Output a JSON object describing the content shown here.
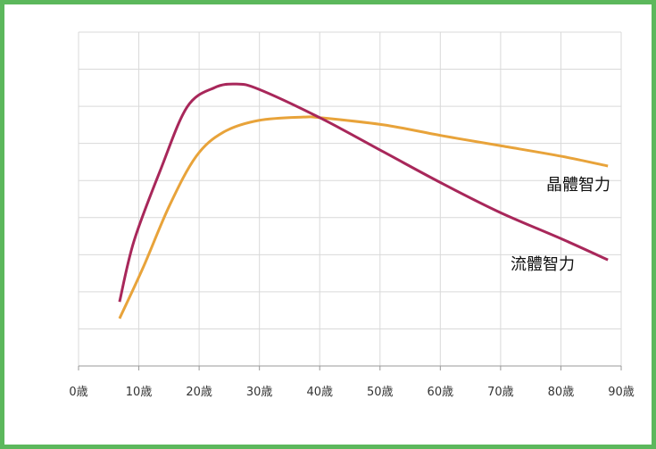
{
  "chart_data": {
    "type": "line",
    "xlim": [
      0,
      90
    ],
    "xticks": [
      {
        "value": 0,
        "label": "0歳"
      },
      {
        "value": 10,
        "label": "10歳"
      },
      {
        "value": 20,
        "label": "20歳"
      },
      {
        "value": 30,
        "label": "30歳"
      },
      {
        "value": 40,
        "label": "40歳"
      },
      {
        "value": 50,
        "label": "50歳"
      },
      {
        "value": 60,
        "label": "60歳"
      },
      {
        "value": 70,
        "label": "70歳"
      },
      {
        "value": 80,
        "label": "80歳"
      },
      {
        "value": 90,
        "label": "90歳"
      }
    ],
    "ylim": [
      0,
      9
    ],
    "yticks": [
      0,
      1,
      2,
      3,
      4,
      5,
      6,
      7,
      8,
      9
    ],
    "grid": true,
    "series": [
      {
        "name": "晶體智力",
        "color": "#e8a33a",
        "x": [
          6.8,
          10.7,
          15.1,
          19.5,
          24.0,
          29.9,
          37.3,
          40.3,
          50.6,
          60.2,
          69.9,
          80.2,
          87.8
        ],
        "values": [
          1.28,
          2.65,
          4.33,
          5.65,
          6.3,
          6.62,
          6.71,
          6.69,
          6.5,
          6.21,
          5.94,
          5.65,
          5.39
        ]
      },
      {
        "name": "流體智力",
        "color": "#a8275a",
        "x": [
          6.8,
          9.2,
          13.6,
          18.0,
          22.5,
          26.2,
          29.9,
          40.3,
          50.6,
          60.2,
          69.9,
          80.2,
          87.8
        ],
        "values": [
          1.73,
          3.37,
          5.29,
          6.98,
          7.5,
          7.6,
          7.46,
          6.67,
          5.77,
          4.93,
          4.14,
          3.42,
          2.86
        ]
      }
    ]
  }
}
